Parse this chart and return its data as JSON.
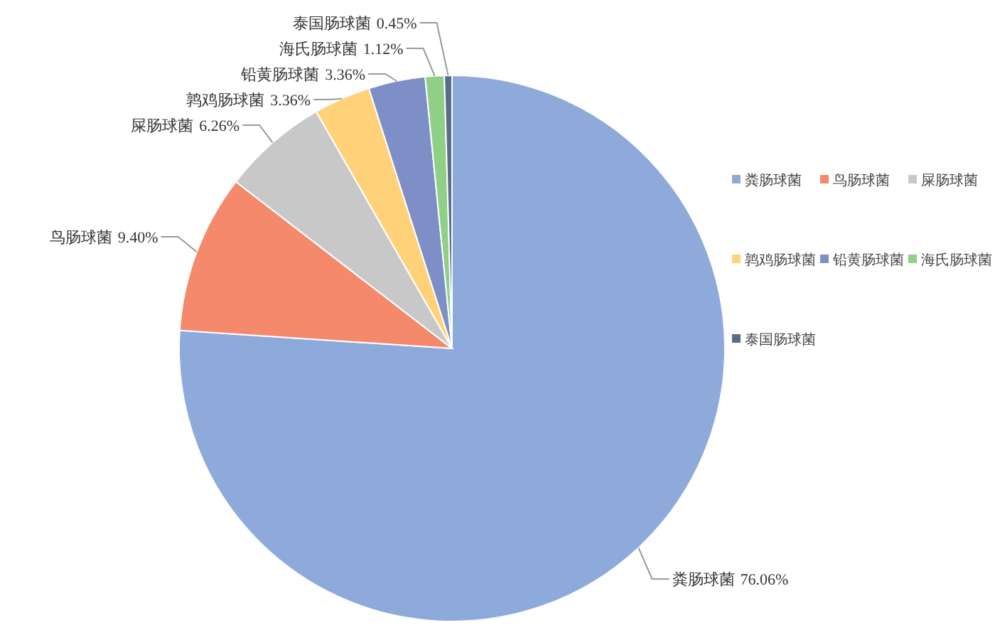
{
  "chart_data": {
    "type": "pie",
    "categories": [
      "粪肠球菌",
      "鸟肠球菌",
      "屎肠球菌",
      "鹑鸡肠球菌",
      "铅黄肠球菌",
      "海氏肠球菌",
      "泰国肠球菌"
    ],
    "values": [
      76.06,
      9.4,
      6.26,
      3.36,
      3.36,
      1.12,
      0.45
    ],
    "colors": [
      "#8eaadb",
      "#f4896b",
      "#c8c8c8",
      "#ffd27a",
      "#7d8fc6",
      "#8fcf86",
      "#5b6b8c"
    ],
    "value_labels": [
      "76.06%",
      "9.40%",
      "6.26%",
      "3.36%",
      "3.36%",
      "1.12%",
      "0.45%"
    ],
    "legend": "right"
  }
}
